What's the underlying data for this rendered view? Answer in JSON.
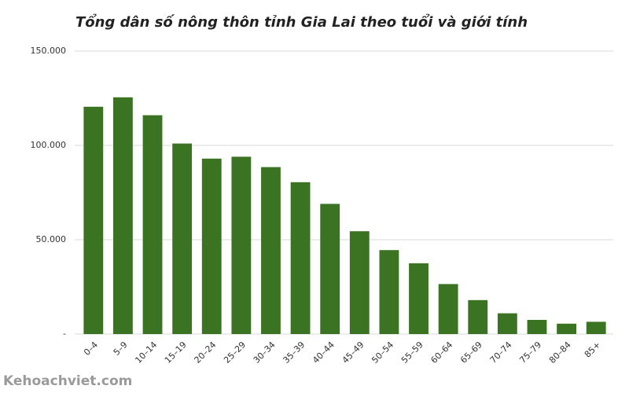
{
  "chart_data": {
    "type": "bar",
    "title": "Tổng dân số nông thôn tỉnh Gia Lai theo tuổi và giới tính",
    "categories": [
      "0–4",
      "5–9",
      "10–14",
      "15–19",
      "20–24",
      "25–29",
      "30–34",
      "35–39",
      "40–44",
      "45–49",
      "50–54",
      "55–59",
      "60–64",
      "65–69",
      "70–74",
      "75–79",
      "80–84",
      "85+"
    ],
    "values": [
      120500,
      125500,
      116000,
      101000,
      93000,
      94000,
      88500,
      80500,
      69000,
      54500,
      44500,
      37500,
      26500,
      18000,
      11000,
      7500,
      5500,
      6500
    ],
    "color": "#3a7321",
    "ylim": [
      0,
      150000
    ],
    "yticks": [
      {
        "value": 0,
        "label": "-"
      },
      {
        "value": 50000,
        "label": "50.000"
      },
      {
        "value": 100000,
        "label": "100.000"
      },
      {
        "value": 150000,
        "label": "150.000"
      }
    ],
    "grid": true,
    "watermark": "Kehoachviet.com"
  }
}
